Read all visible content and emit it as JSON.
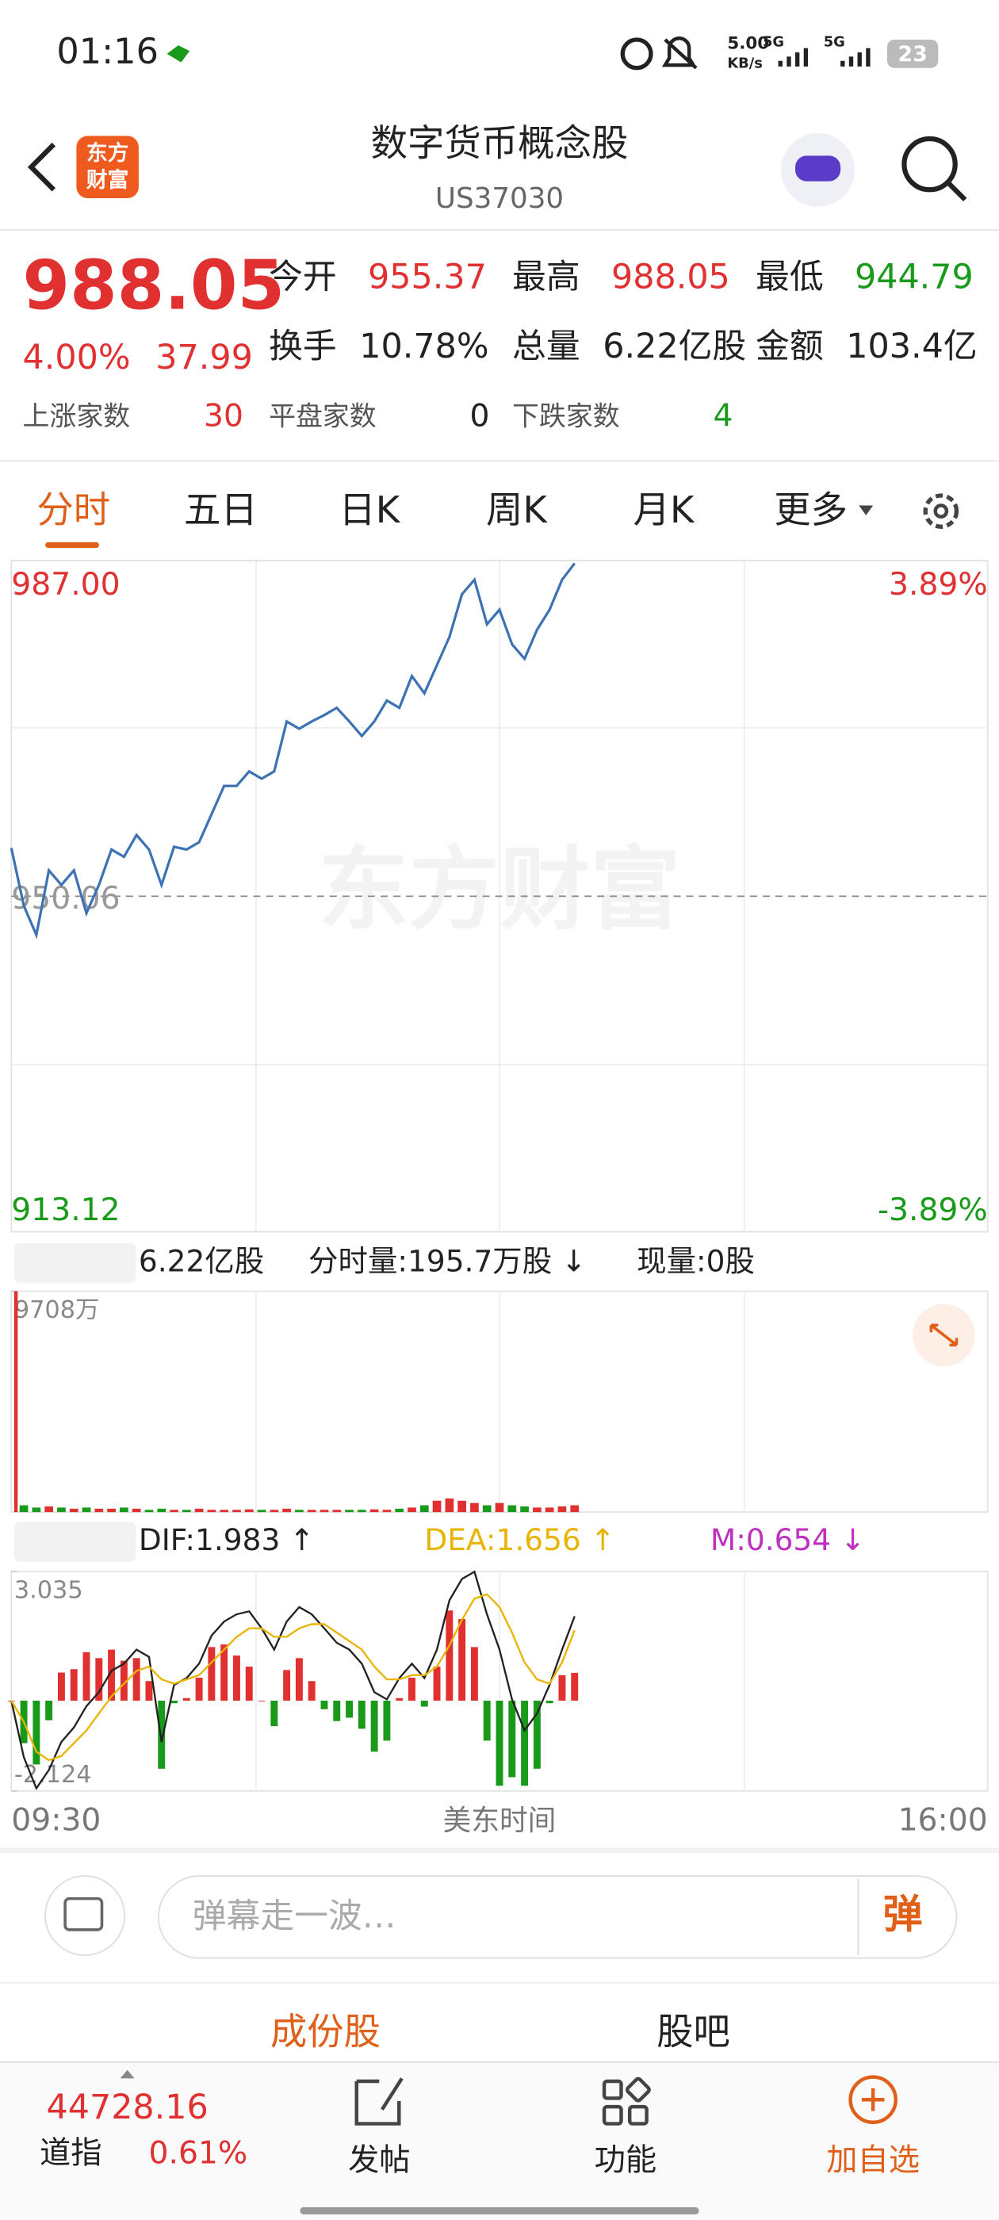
{
  "status_bar": {
    "time": "01:16",
    "net_speed": "5.00",
    "net_unit": "KB/s",
    "signal_1": "5G",
    "signal_2": "5G",
    "battery": "23"
  },
  "header": {
    "logo_line_1": "东方",
    "logo_line_2": "财富",
    "title": "数字货币概念股",
    "code": "US37030"
  },
  "quote": {
    "price": "988.05",
    "change_pct": "4.00%",
    "change": "37.99",
    "fields": [
      {
        "label": "今开",
        "value": "955.37"
      },
      {
        "label": "最高",
        "value": "988.05"
      },
      {
        "label": "最低",
        "value": "944.79"
      },
      {
        "label": "换手",
        "value": "10.78%"
      },
      {
        "label": "总量",
        "value": "6.22亿股"
      },
      {
        "label": "金额",
        "value": "103.4亿"
      }
    ],
    "breadth": [
      {
        "label": "上涨家数",
        "value": "30"
      },
      {
        "label": "平盘家数",
        "value": "0"
      },
      {
        "label": "下跌家数",
        "value": "4"
      }
    ]
  },
  "tabs": [
    "分时",
    "五日",
    "日K",
    "周K",
    "月K",
    "更多"
  ],
  "watermark": "东方财富",
  "chart_data": [
    {
      "type": "line",
      "color": "#3d72b4",
      "up_color": "#e03030",
      "down_color": "#1a9a1a",
      "ylim": [
        913.12,
        987.0
      ],
      "yticks": [
        913.12,
        950.06,
        {
          "value": 987.0,
          "label": "987.00"
        }
      ],
      "y2lim": [
        -3.89,
        3.89
      ],
      "y2ticks": [
        {
          "value": -3.89,
          "label": "-3.89%"
        },
        {
          "value": 3.89,
          "label": "3.89%"
        }
      ],
      "values": [
        955.37,
        949.0,
        945.8,
        952.9,
        951.3,
        952.9,
        948.2,
        951.3,
        955.2,
        954.4,
        956.8,
        955.2,
        951.3,
        955.5,
        955.2,
        956.0,
        959.1,
        962.2,
        962.2,
        963.8,
        963.0,
        963.8,
        969.3,
        968.5,
        969.3,
        970.0,
        970.8,
        969.3,
        967.7,
        969.3,
        971.6,
        970.8,
        974.3,
        972.4,
        975.5,
        978.6,
        983.3,
        984.9,
        980.0,
        981.6,
        977.8,
        976.2,
        979.4,
        981.6,
        984.9,
        986.7,
        null,
        null,
        null,
        null,
        null,
        null,
        null,
        null,
        null,
        null,
        null,
        null,
        null,
        null,
        null,
        null,
        null,
        null,
        null,
        null,
        null,
        null,
        null,
        null,
        null,
        null,
        null,
        null,
        null,
        null,
        null,
        null,
        null
      ]
    },
    {
      "type": "bar",
      "label": "成交量",
      "readouts": [
        "6.22亿股",
        "分时量:195.7万股 ↓",
        "现量:0股"
      ],
      "up_color": "#e03030",
      "down_color": "#1a9a1a",
      "ylim": [
        0,
        97080000
      ],
      "yticks": [
        {
          "value": 97080000,
          "label": "9708万"
        }
      ],
      "values": [
        97080000,
        3000000,
        2000000,
        2500000,
        2000000,
        1500000,
        2000000,
        1500000,
        1500000,
        2000000,
        1500000,
        1000000,
        1500000,
        1000000,
        1000000,
        1500000,
        1000000,
        1000000,
        1000000,
        1200000,
        1000000,
        1000000,
        1500000,
        1000000,
        1000000,
        1000000,
        1000000,
        1000000,
        1000000,
        1200000,
        1000000,
        1500000,
        2000000,
        3000000,
        5000000,
        6000000,
        5000000,
        4000000,
        3000000,
        4000000,
        3000000,
        2500000,
        2000000,
        2000000,
        2500000,
        3000000,
        null,
        null,
        null,
        null,
        null,
        null,
        null,
        null,
        null,
        null,
        null,
        null,
        null,
        null,
        null,
        null,
        null,
        null,
        null,
        null,
        null,
        null,
        null,
        null,
        null,
        null,
        null,
        null,
        null,
        null,
        null,
        null,
        null
      ]
    },
    {
      "type": "macd",
      "label": "MACD",
      "readouts": [
        "DIF:1.983 ↑",
        "DEA:1.656 ↑",
        "M:0.654 ↓"
      ],
      "readout_colors": [
        "#222222",
        "#e8b400",
        "#c030c0"
      ],
      "ylim": [
        -2.124,
        3.035
      ],
      "yticks": [
        -2.124,
        3.035
      ],
      "series": [
        {
          "color": "#222222",
          "values": [
            0,
            -1.33,
            -2.06,
            -1.63,
            -0.97,
            -0.63,
            -0.13,
            0.2,
            0.7,
            0.87,
            1.2,
            1.03,
            -0.97,
            0.37,
            0.53,
            0.87,
            1.53,
            1.86,
            2.03,
            2.1,
            1.7,
            1.2,
            1.86,
            2.2,
            2.03,
            1.7,
            1.36,
            1.2,
            0.87,
            0.2,
            0.03,
            0.53,
            0.87,
            0.53,
            1.2,
            2.36,
            2.86,
            3.03,
            2.03,
            1.2,
            0.03,
            -0.7,
            -0.3,
            0.37,
            1.2,
            1.983,
            null,
            null,
            null,
            null,
            null,
            null,
            null,
            null,
            null,
            null,
            null,
            null,
            null,
            null,
            null,
            null,
            null,
            null,
            null,
            null,
            null,
            null,
            null,
            null,
            null,
            null,
            null,
            null,
            null,
            null,
            null,
            null,
            null
          ]
        },
        {
          "color": "#e8b400",
          "values": [
            0,
            -0.5,
            -1.2,
            -1.4,
            -1.3,
            -1.0,
            -0.7,
            -0.3,
            0.1,
            0.4,
            0.7,
            0.8,
            0.5,
            0.4,
            0.5,
            0.6,
            0.9,
            1.2,
            1.5,
            1.7,
            1.7,
            1.5,
            1.5,
            1.7,
            1.8,
            1.8,
            1.6,
            1.4,
            1.2,
            0.8,
            0.5,
            0.5,
            0.6,
            0.6,
            0.8,
            1.3,
            1.9,
            2.4,
            2.5,
            2.2,
            1.6,
            0.9,
            0.5,
            0.4,
            0.9,
            1.656,
            null,
            null,
            null,
            null,
            null,
            null,
            null,
            null,
            null,
            null,
            null,
            null,
            null,
            null,
            null,
            null,
            null,
            null,
            null,
            null,
            null,
            null,
            null,
            null,
            null,
            null,
            null,
            null,
            null,
            null,
            null,
            null,
            null
          ]
        }
      ],
      "histogram": {
        "up_color": "#e03030",
        "down_color": "#1a9a1a",
        "values": [
          0,
          -1.0,
          -1.5,
          -0.46,
          0.66,
          0.74,
          1.14,
          1.0,
          1.2,
          0.94,
          1.0,
          0.46,
          -1.6,
          -0.06,
          0.06,
          0.54,
          1.26,
          1.32,
          1.06,
          0.8,
          0,
          -0.6,
          0.72,
          1.0,
          0.46,
          -0.2,
          -0.48,
          -0.4,
          -0.66,
          -1.2,
          -0.94,
          0.06,
          0.54,
          -0.14,
          0.8,
          2.12,
          1.92,
          1.26,
          -0.94,
          -2.0,
          -1.8,
          -2.0,
          -1.6,
          -0.06,
          0.6,
          0.654,
          null,
          null,
          null,
          null,
          null,
          null,
          null,
          null,
          null,
          null,
          null,
          null,
          null,
          null,
          null,
          null,
          null,
          null,
          null,
          null,
          null,
          null,
          null,
          null,
          null,
          null,
          null,
          null,
          null,
          null,
          null,
          null,
          null
        ]
      },
      "xtick_labels": [
        "09:30",
        "16:00"
      ],
      "x_label": "美东时间"
    }
  ],
  "comment_bar": {
    "placeholder": "弹幕走一波…",
    "button": "弹"
  },
  "section_tabs": [
    "成份股",
    "股吧"
  ],
  "bottom_nav": {
    "index_value": "44728.16",
    "index_name": "道指",
    "index_change": "0.61%",
    "items": [
      "发帖",
      "功能",
      "加自选"
    ]
  }
}
